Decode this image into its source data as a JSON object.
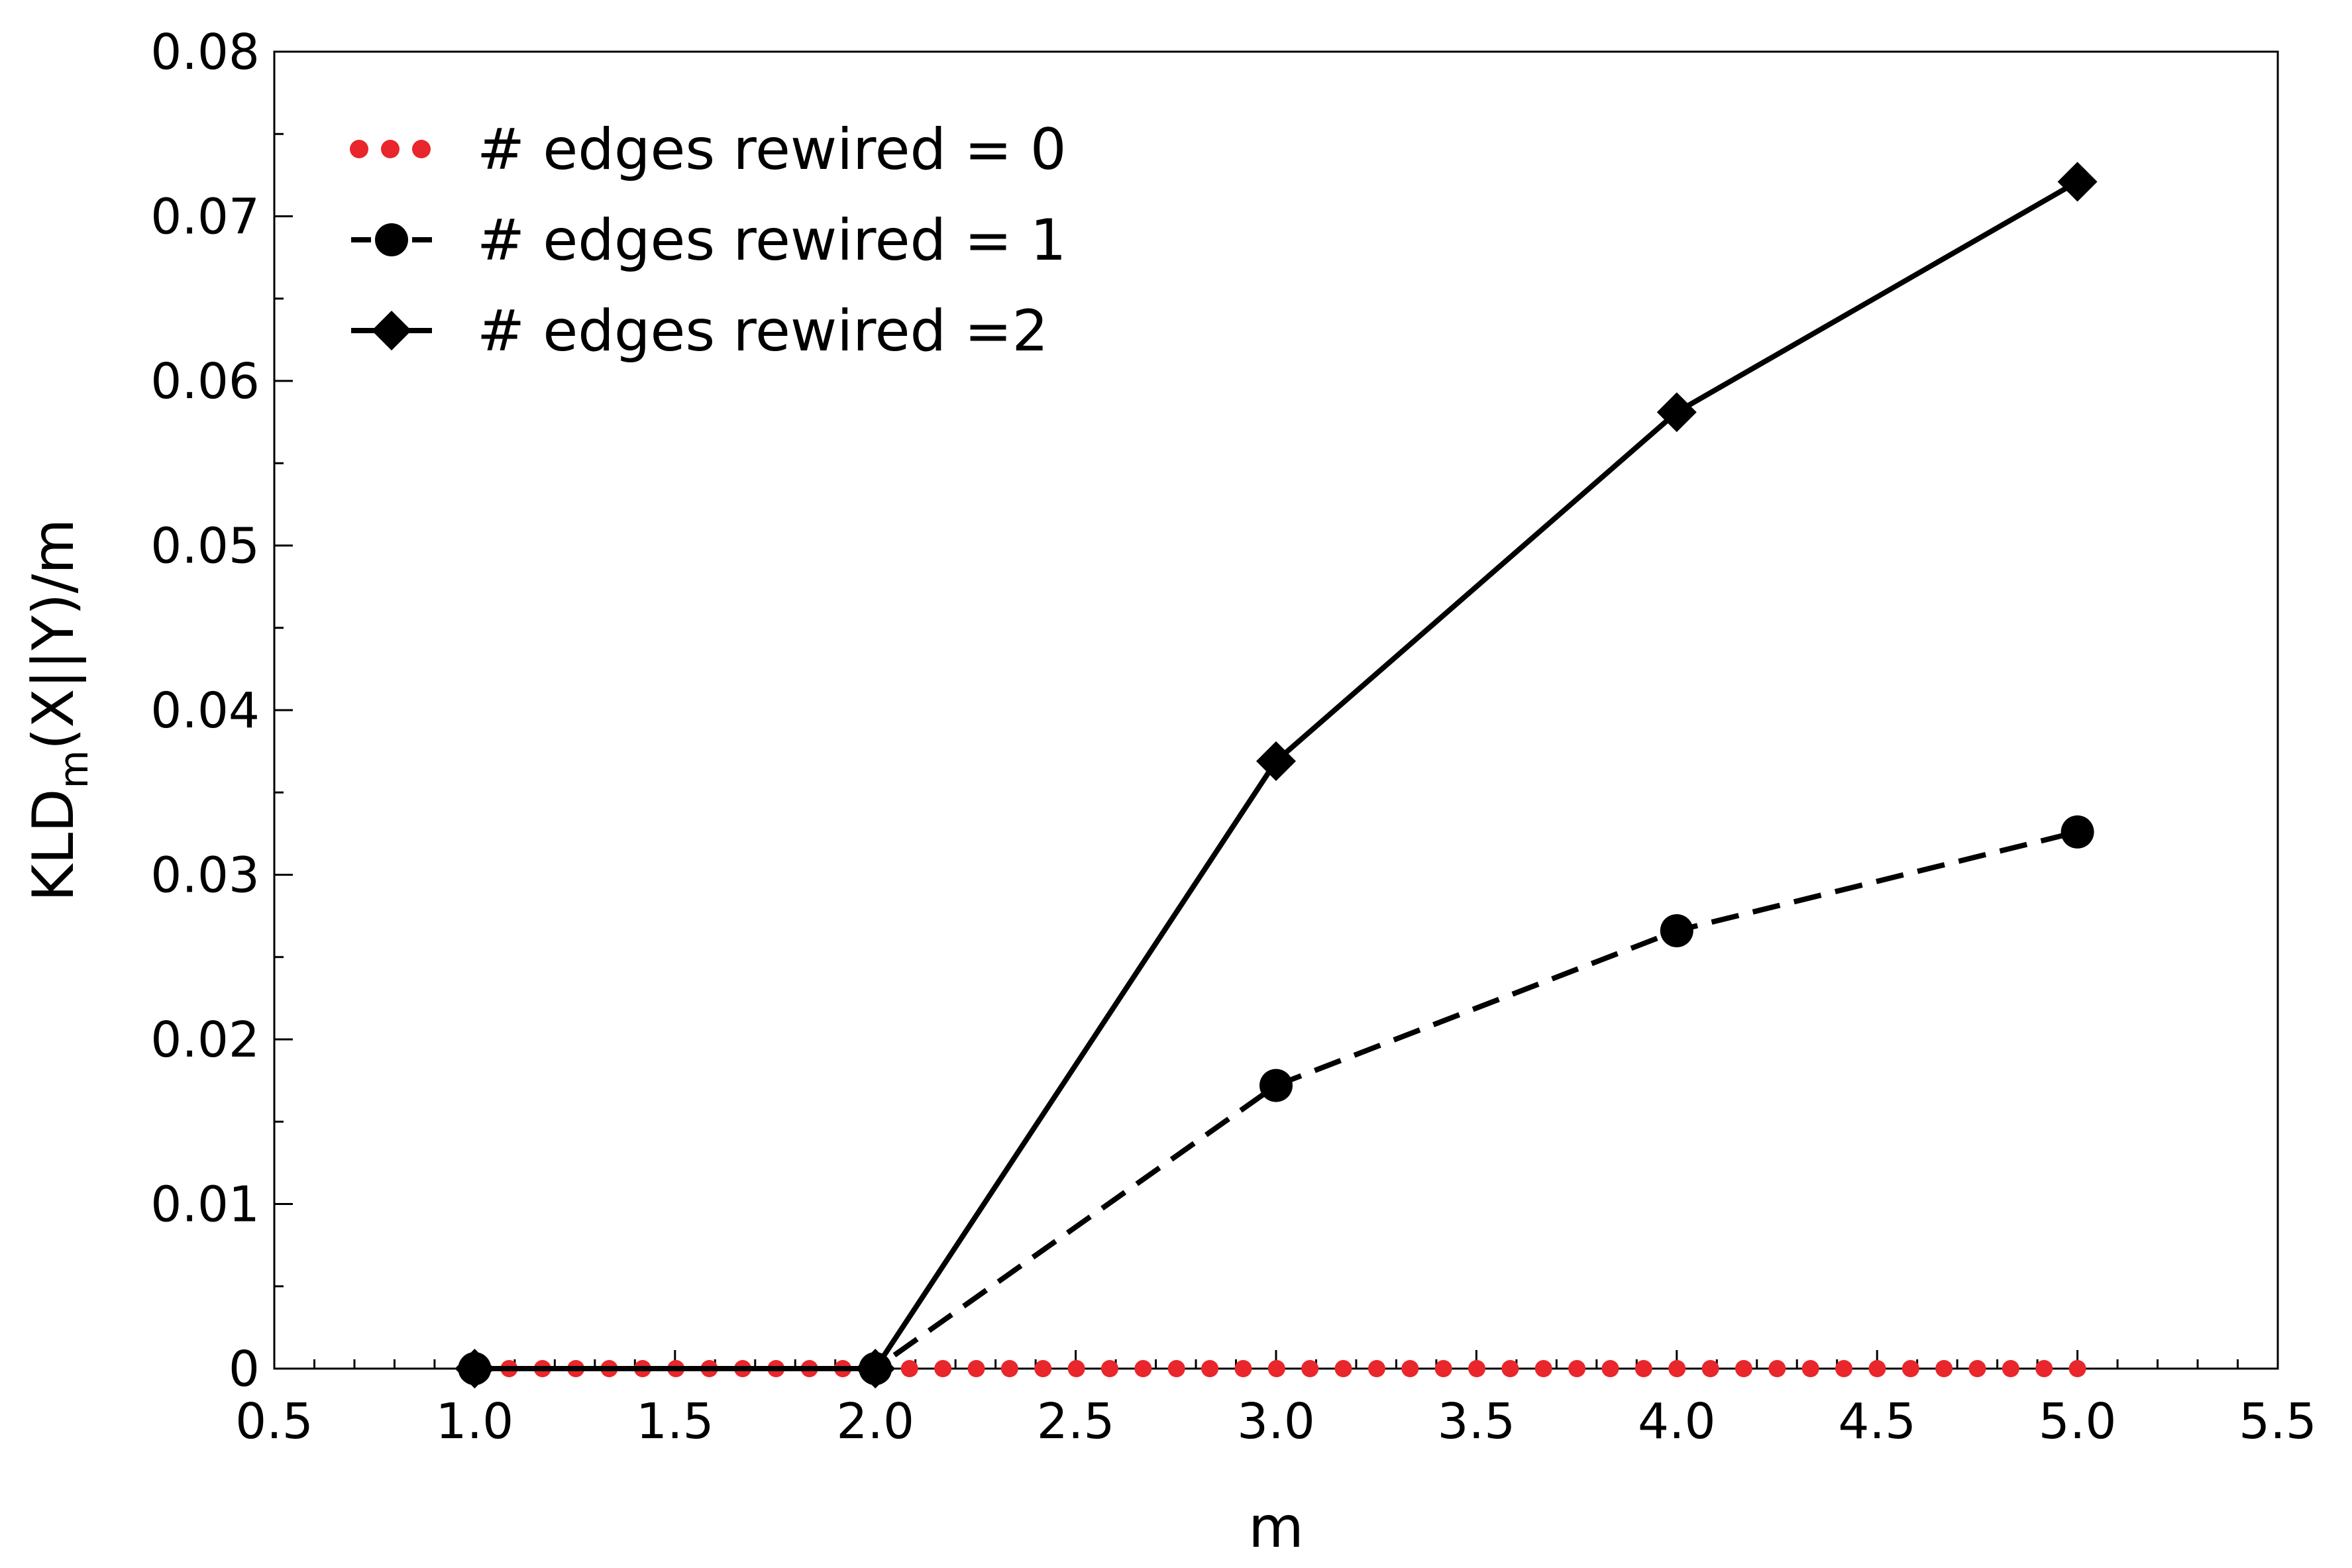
{
  "chart_data": {
    "type": "line",
    "title": "",
    "xlabel": "m",
    "ylabel": {
      "main": "KLD",
      "sub": "m",
      "rest": "(X||Y)/m"
    },
    "xlim": [
      0.5,
      5.5
    ],
    "ylim": [
      0,
      0.08
    ],
    "xticks": [
      0.5,
      1.0,
      1.5,
      2.0,
      2.5,
      3.0,
      3.5,
      4.0,
      4.5,
      5.0,
      5.5
    ],
    "xtick_labels": [
      "0.5",
      "1.0",
      "1.5",
      "2.0",
      "2.5",
      "3.0",
      "3.5",
      "4.0",
      "4.5",
      "5.0",
      "5.5"
    ],
    "yticks": [
      0,
      0.01,
      0.02,
      0.03,
      0.04,
      0.05,
      0.06,
      0.07,
      0.08
    ],
    "ytick_labels": [
      "0",
      "0.01",
      "0.02",
      "0.03",
      "0.04",
      "0.05",
      "0.06",
      "0.07",
      "0.08"
    ],
    "grid": false,
    "legend_position": "top-left",
    "series": [
      {
        "name": "# edges rewired = 0",
        "color": "#e8262b",
        "style": "dotted",
        "marker": "dot",
        "x": [
          1,
          2,
          3,
          4,
          5
        ],
        "y": [
          0,
          0,
          0,
          0,
          0
        ]
      },
      {
        "name": "# edges rewired = 1",
        "color": "#000000",
        "style": "dashed",
        "marker": "circle",
        "x": [
          1,
          2,
          3,
          4,
          5
        ],
        "y": [
          0,
          0,
          0.0172,
          0.0266,
          0.0326
        ]
      },
      {
        "name": "# edges rewired =2",
        "color": "#000000",
        "style": "solid",
        "marker": "diamond",
        "x": [
          1,
          2,
          3,
          4,
          5
        ],
        "y": [
          0,
          0,
          0.0369,
          0.0581,
          0.0721
        ]
      }
    ]
  }
}
